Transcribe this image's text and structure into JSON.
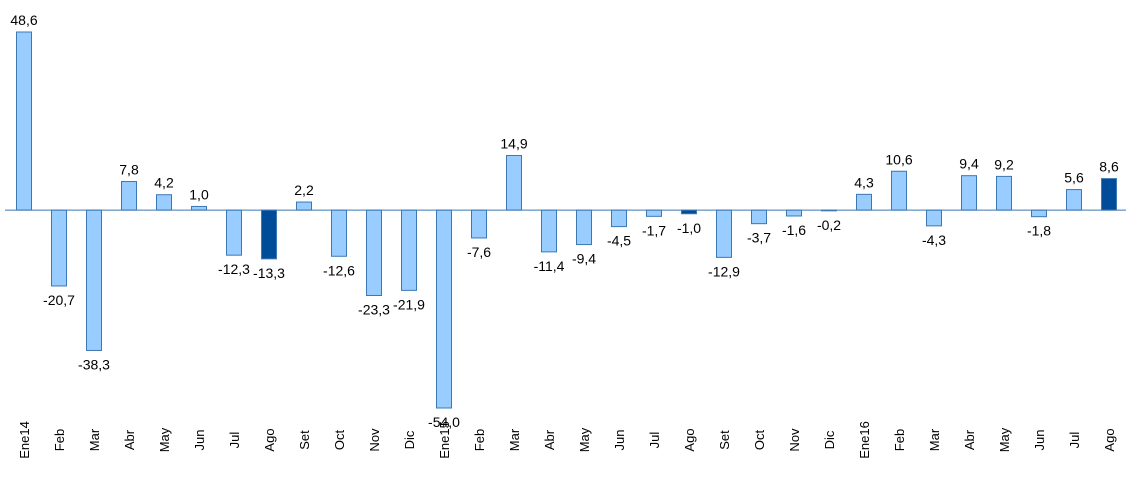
{
  "chart_data": {
    "type": "bar",
    "categories": [
      "Ene14",
      "Feb",
      "Mar",
      "Abr",
      "May",
      "Jun",
      "Jul",
      "Ago",
      "Set",
      "Oct",
      "Nov",
      "Dic",
      "Ene15",
      "Feb",
      "Mar",
      "Abr",
      "May",
      "Jun",
      "Jul",
      "Ago",
      "Set",
      "Oct",
      "Nov",
      "Dic",
      "Ene16",
      "Feb",
      "Mar",
      "Abr",
      "May",
      "Jun",
      "Jul",
      "Ago"
    ],
    "values": [
      48.6,
      -20.7,
      -38.3,
      7.8,
      4.2,
      1.0,
      -12.3,
      -13.3,
      2.2,
      -12.6,
      -23.3,
      -21.9,
      -54.0,
      -7.6,
      14.9,
      -11.4,
      -9.4,
      -4.5,
      -1.7,
      -1.0,
      -12.9,
      -3.7,
      -1.6,
      -0.2,
      4.3,
      10.6,
      -4.3,
      9.4,
      9.2,
      -1.8,
      5.6,
      8.6
    ],
    "value_labels": [
      "48,6",
      "-20,7",
      "-38,3",
      "7,8",
      "4,2",
      "1,0",
      "-12,3",
      "-13,3",
      "2,2",
      "-12,6",
      "-23,3",
      "-21,9",
      "-54,0",
      "-7,6",
      "14,9",
      "-11,4",
      "-9,4",
      "-4,5",
      "-1,7",
      "-1,0",
      "-12,9",
      "-3,7",
      "-1,6",
      "-0,2",
      "4,3",
      "10,6",
      "-4,3",
      "9,4",
      "9,2",
      "-1,8",
      "5,6",
      "8,6"
    ],
    "colors": [
      "#99ccff",
      "#99ccff",
      "#99ccff",
      "#99ccff",
      "#99ccff",
      "#99ccff",
      "#99ccff",
      "#004c99",
      "#99ccff",
      "#99ccff",
      "#99ccff",
      "#99ccff",
      "#99ccff",
      "#99ccff",
      "#99ccff",
      "#99ccff",
      "#99ccff",
      "#99ccff",
      "#99ccff",
      "#004c99",
      "#99ccff",
      "#99ccff",
      "#99ccff",
      "#99ccff",
      "#99ccff",
      "#99ccff",
      "#99ccff",
      "#99ccff",
      "#99ccff",
      "#99ccff",
      "#99ccff",
      "#004c99"
    ]
  }
}
